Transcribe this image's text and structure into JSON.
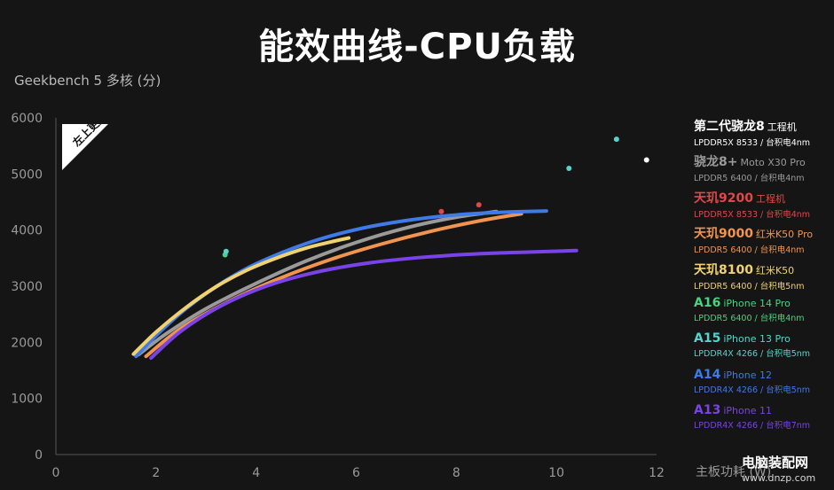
{
  "title": "能效曲线-CPU负载",
  "chart_data": {
    "type": "line",
    "title": "能效曲线-CPU负载",
    "ylabel": "Geekbench 5 多核 (分)",
    "xlabel": "主板功耗 (W)",
    "xlim": [
      0,
      12
    ],
    "ylim": [
      0,
      6000
    ],
    "xticks": [
      "0",
      "2",
      "4",
      "6",
      "8",
      "10",
      "12"
    ],
    "yticks": [
      "0",
      "1000",
      "2000",
      "3000",
      "4000",
      "5000",
      "6000"
    ],
    "grid": false,
    "legend_position": "right",
    "badge": "左上更好",
    "series": [
      {
        "name": "第二代骁龙8",
        "device": "工程机",
        "memory": "LPDDR5X 8533 / 台积电4nm",
        "color": "#ffffff",
        "kind": "point",
        "x": [
          11.8
        ],
        "y": [
          5250
        ]
      },
      {
        "name": "骁龙8+",
        "device": "Moto X30 Pro",
        "memory": "LPDDR5 6400 / 台积电4nm",
        "color": "#9a9a9a",
        "kind": "line",
        "x": [
          1.65,
          2.2,
          3,
          4,
          5,
          6,
          7,
          8,
          8.8
        ],
        "y": [
          1780,
          2150,
          2600,
          3050,
          3450,
          3780,
          4040,
          4230,
          4330
        ]
      },
      {
        "name": "天玑9200",
        "device": "工程机",
        "memory": "LPDDR5X 8533 / 台积电4nm",
        "color": "#e04848",
        "kind": "point",
        "x": [
          7.7,
          8.45
        ],
        "y": [
          4330,
          4450
        ]
      },
      {
        "name": "天玑9000",
        "device": "红米K50 Pro",
        "memory": "LPDDR5 6400 / 台积电4nm",
        "color": "#f1944f",
        "kind": "line",
        "x": [
          1.8,
          2.5,
          3.5,
          4.5,
          5.5,
          6.5,
          7.5,
          8.5,
          9.3
        ],
        "y": [
          1750,
          2250,
          2750,
          3150,
          3480,
          3750,
          3980,
          4170,
          4290
        ]
      },
      {
        "name": "天玑8100",
        "device": "红米K50",
        "memory": "LPDDR5 6400 / 台积电5nm",
        "color": "#f0d270",
        "kind": "line",
        "x": [
          1.55,
          2,
          2.6,
          3.2,
          3.8,
          4.4,
          5,
          5.5,
          5.85
        ],
        "y": [
          1790,
          2180,
          2620,
          2990,
          3280,
          3500,
          3680,
          3790,
          3860
        ]
      },
      {
        "name": "A16",
        "device": "iPhone 14 Pro",
        "memory": "LPDDR5 6400 / 台积电4nm",
        "color": "#4ad182",
        "kind": "point",
        "x": [
          3.38
        ],
        "y": [
          3560
        ]
      },
      {
        "name": "A15",
        "device": "iPhone 13 Pro",
        "memory": "LPDDR4X 4266 / 台积电5nm",
        "color": "#56d3cb",
        "kind": "point",
        "x": [
          3.4,
          10.25,
          11.2
        ],
        "y": [
          3620,
          5100,
          5620
        ]
      },
      {
        "name": "A14",
        "device": "iPhone 12",
        "memory": "LPDDR4X 4266 / 台积电5nm",
        "color": "#3f7ae6",
        "kind": "line",
        "x": [
          1.6,
          2,
          2.6,
          3.3,
          4,
          5,
          6,
          7,
          8,
          9,
          9.8
        ],
        "y": [
          1750,
          2120,
          2600,
          3050,
          3400,
          3760,
          4010,
          4170,
          4270,
          4320,
          4340
        ]
      },
      {
        "name": "A13",
        "device": "iPhone 11",
        "memory": "LPDDR4X 4266 / 台积电7nm",
        "color": "#7a43e8",
        "kind": "line",
        "x": [
          1.9,
          2.5,
          3.3,
          4.2,
          5.2,
          6.3,
          7.4,
          8.5,
          9.5,
          10.4
        ],
        "y": [
          1720,
          2200,
          2650,
          3000,
          3250,
          3420,
          3520,
          3580,
          3610,
          3635
        ]
      }
    ]
  },
  "watermark": {
    "name": "电脑装配网",
    "url": "www.dnzp.com"
  }
}
